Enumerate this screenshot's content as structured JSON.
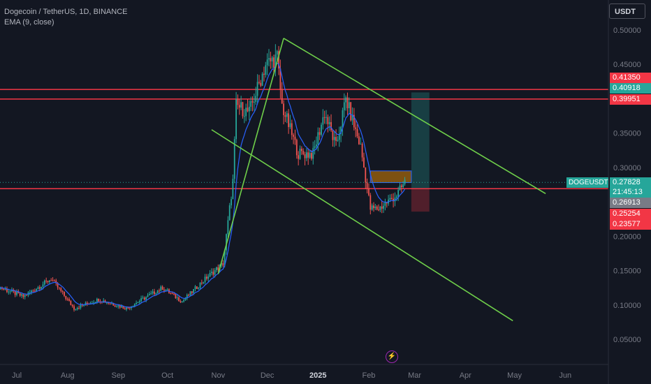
{
  "header": {
    "title": "Dogecoin / TetherUS, 1D, BINANCE",
    "indicator": "EMA (9, close)"
  },
  "currency_button": "USDT",
  "y_axis_labels": [
    "0.50000",
    "0.45000",
    "0.35000",
    "0.30000",
    "0.20000",
    "0.15000",
    "0.10000",
    "0.05000"
  ],
  "x_axis_labels": [
    "Jul",
    "Aug",
    "Sep",
    "Oct",
    "Nov",
    "Dec",
    "2025",
    "Feb",
    "Mar",
    "Apr",
    "May",
    "Jun"
  ],
  "price_tags": [
    {
      "value": "0.41350",
      "color": "#f23645"
    },
    {
      "value": "0.40918",
      "color": "#26a69a"
    },
    {
      "value": "0.39951",
      "color": "#f23645"
    },
    {
      "value": "0.27828",
      "color": "#26a69a"
    },
    {
      "value": "21:45:13",
      "color": "#26a69a"
    },
    {
      "value": "0.26913",
      "color": "#787b86"
    },
    {
      "value": "0.25254",
      "color": "#f23645"
    },
    {
      "value": "0.23577",
      "color": "#f23645"
    }
  ],
  "symbol_tag": "DOGEUSDT",
  "current_price": 0.27828,
  "horizontal_levels": [
    0.4135,
    0.39951,
    0.26913
  ],
  "colors": {
    "background": "#131722",
    "bull": "#26a69a",
    "bear": "#ef5350",
    "level_line": "#f23645",
    "trendline": "#6fcf4a",
    "ema": "#2962ff"
  },
  "chart_data": {
    "type": "candlestick",
    "symbol": "DOGEUSDT",
    "timeframe": "1D",
    "ylim": [
      0.0,
      0.52
    ],
    "x_range": [
      "2024-06-18",
      "2025-06-22"
    ],
    "series": [
      {
        "name": "EMA (9, close)",
        "type": "line"
      }
    ],
    "price_path": [
      [
        "2024-06-18",
        0.128
      ],
      [
        "2024-07-05",
        0.112
      ],
      [
        "2024-07-22",
        0.138
      ],
      [
        "2024-08-05",
        0.095
      ],
      [
        "2024-08-20",
        0.108
      ],
      [
        "2024-09-06",
        0.095
      ],
      [
        "2024-09-28",
        0.125
      ],
      [
        "2024-10-10",
        0.105
      ],
      [
        "2024-10-25",
        0.14
      ],
      [
        "2024-11-04",
        0.16
      ],
      [
        "2024-11-10",
        0.28
      ],
      [
        "2024-11-12",
        0.39
      ],
      [
        "2024-11-20",
        0.38
      ],
      [
        "2024-11-30",
        0.45
      ],
      [
        "2024-12-07",
        0.46
      ],
      [
        "2024-12-10",
        0.39
      ],
      [
        "2024-12-20",
        0.32
      ],
      [
        "2024-12-29",
        0.32
      ],
      [
        "2025-01-05",
        0.38
      ],
      [
        "2025-01-12",
        0.33
      ],
      [
        "2025-01-18",
        0.4
      ],
      [
        "2025-01-27",
        0.33
      ],
      [
        "2025-02-02",
        0.24
      ],
      [
        "2025-02-07",
        0.24
      ],
      [
        "2025-02-18",
        0.26
      ],
      [
        "2025-02-23",
        0.278
      ]
    ],
    "trendlines": [
      {
        "from": [
          "2024-11-01",
          0.145
        ],
        "to": [
          "2024-12-11",
          0.488
        ]
      },
      {
        "from": [
          "2024-12-11",
          0.488
        ],
        "to": [
          "2025-05-20",
          0.262
        ]
      },
      {
        "from": [
          "2024-10-28",
          0.355
        ],
        "to": [
          "2025-04-30",
          0.077
        ]
      }
    ],
    "boxes": [
      {
        "kind": "target",
        "from_date": "2025-02-27",
        "to_date": "2025-03-10",
        "top": 0.40918,
        "bottom": 0.26913,
        "color": "#26a69a"
      },
      {
        "kind": "stop",
        "from_date": "2025-02-27",
        "to_date": "2025-03-10",
        "top": 0.26913,
        "bottom": 0.23577,
        "color": "#f23645"
      },
      {
        "kind": "zone",
        "from_date": "2025-02-02",
        "to_date": "2025-02-27",
        "top": 0.295,
        "bottom": 0.278,
        "color": "#ff9800"
      }
    ]
  }
}
